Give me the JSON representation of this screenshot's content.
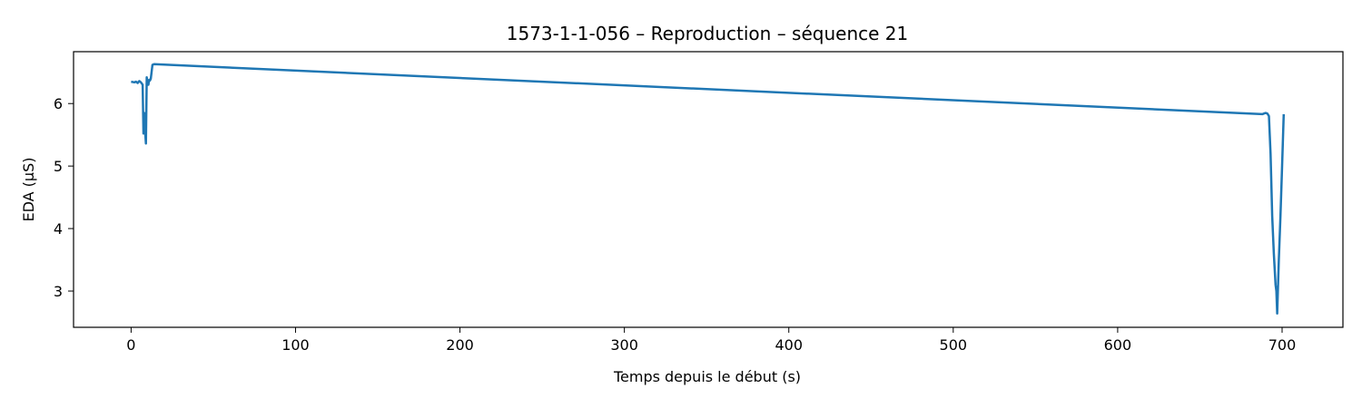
{
  "chart_data": {
    "type": "line",
    "title": "1573-1-1-056 – Reproduction – séquence 21",
    "xlabel": "Temps depuis le début (s)",
    "ylabel": "EDA (µS)",
    "xlim": [
      -35,
      737
    ],
    "ylim": [
      2.42,
      6.83
    ],
    "xticks": [
      0,
      100,
      200,
      300,
      400,
      500,
      600,
      700
    ],
    "yticks": [
      3,
      4,
      5,
      6
    ],
    "grid": false,
    "series": [
      {
        "color": "#1f77b4",
        "x": [
          0,
          2,
          3,
          4,
          5,
          6,
          6.5,
          7,
          7.5,
          8,
          8.5,
          9,
          9.5,
          10,
          10.5,
          11,
          11.5,
          12,
          13,
          14,
          688,
          689,
          690,
          691,
          691.5,
          692,
          693,
          694,
          695,
          696,
          696.5,
          697,
          698,
          699,
          700,
          701
        ],
        "y": [
          6.35,
          6.34,
          6.35,
          6.33,
          6.36,
          6.34,
          6.32,
          6.3,
          5.52,
          5.85,
          5.55,
          5.36,
          6.42,
          6.3,
          6.3,
          6.38,
          6.37,
          6.4,
          6.62,
          6.63,
          5.83,
          5.84,
          5.85,
          5.84,
          5.82,
          5.8,
          5.2,
          4.2,
          3.6,
          3.1,
          3.0,
          2.64,
          3.5,
          4.2,
          5.0,
          5.83
        ]
      }
    ]
  }
}
